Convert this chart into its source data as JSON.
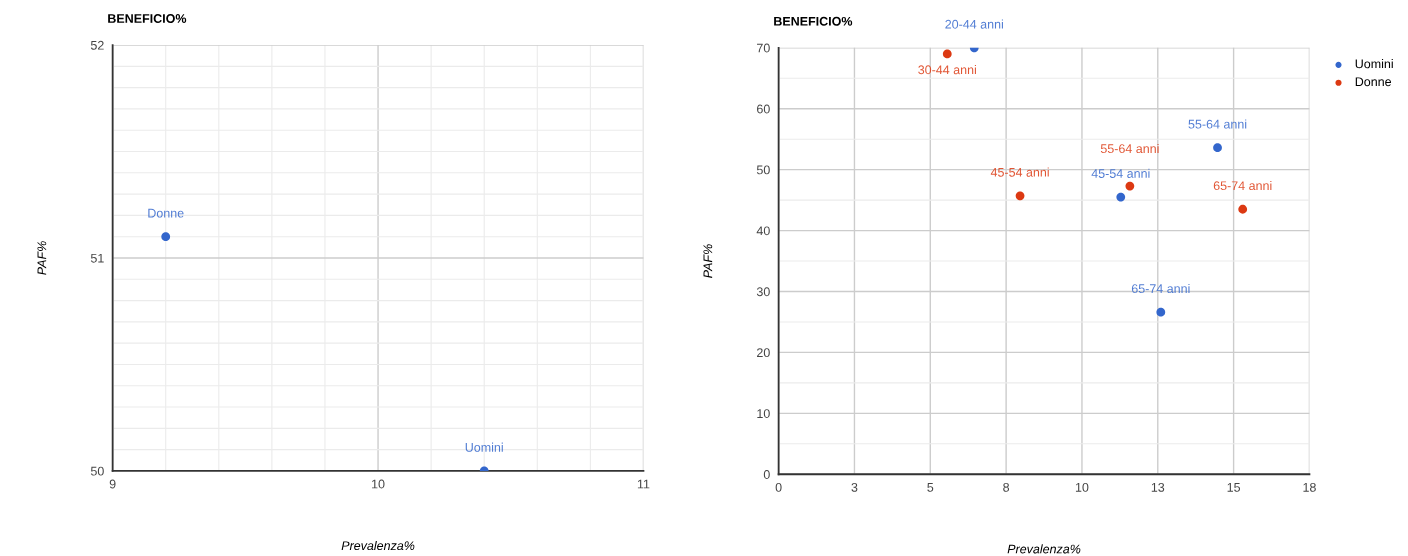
{
  "chart_data": [
    {
      "type": "scatter",
      "title": "BENEFICIO%",
      "xlabel": "Prevalenza%",
      "ylabel": "PAF%",
      "series": [
        {
          "color": "#3366cc",
          "x": [
            9.2,
            10.4
          ],
          "values": [
            51.1,
            50.0
          ],
          "value_labels": [
            "Donne",
            "Uomini"
          ]
        }
      ],
      "xlim": [
        9,
        11
      ],
      "ylim": [
        50,
        52
      ],
      "xticks": [
        9,
        {
          "value": 9.2,
          "label": null
        },
        {
          "value": 9.4,
          "label": null
        },
        {
          "value": 9.6,
          "label": null
        },
        {
          "value": 9.8,
          "label": null
        },
        10,
        {
          "value": 10.2,
          "label": null
        },
        {
          "value": 10.4,
          "label": null
        },
        {
          "value": 10.6,
          "label": null
        },
        {
          "value": 10.8,
          "label": null
        },
        11
      ],
      "yticks": [
        50,
        {
          "value": 50.1,
          "label": null
        },
        {
          "value": 50.2,
          "label": null
        },
        {
          "value": 50.3,
          "label": null
        },
        {
          "value": 50.4,
          "label": null
        },
        {
          "value": 50.5,
          "label": null
        },
        {
          "value": 50.6,
          "label": null
        },
        {
          "value": 50.7,
          "label": null
        },
        {
          "value": 50.8,
          "label": null
        },
        {
          "value": 50.9,
          "label": null
        },
        51,
        {
          "value": 51.1,
          "label": null
        },
        {
          "value": 51.2,
          "label": null
        },
        {
          "value": 51.3,
          "label": null
        },
        {
          "value": 51.4,
          "label": null
        },
        {
          "value": 51.5,
          "label": null
        },
        {
          "value": 51.6,
          "label": null
        },
        {
          "value": 51.7,
          "label": null
        },
        {
          "value": 51.8,
          "label": null
        },
        {
          "value": 51.9,
          "label": null
        },
        52
      ],
      "grid": true,
      "marker": "circle"
    },
    {
      "type": "scatter",
      "title": "BENEFICIO%",
      "xlabel": "Prevalenza%",
      "ylabel": "PAF%",
      "series": [
        {
          "name": "Uomini",
          "color": "#3366cc",
          "x": [
            6.45,
            11.28,
            14.47,
            12.6
          ],
          "values": [
            70,
            45.5,
            53.6,
            26.6
          ],
          "value_labels": [
            "20-44 anni",
            "45-54 anni",
            "55-64 anni",
            "65-74 anni"
          ]
        },
        {
          "name": "Donne",
          "color": "#dc3912",
          "x": [
            5.56,
            7.96,
            11.58,
            15.3
          ],
          "values": [
            69.0,
            45.7,
            47.3,
            43.5
          ],
          "value_labels": [
            "30-44 anni",
            "45-54 anni",
            "55-64 anni",
            "65-74 anni"
          ]
        }
      ],
      "xlim": [
        0,
        17.5
      ],
      "ylim": [
        0,
        70
      ],
      "xticks": [
        0,
        {
          "value": 2.5,
          "label": "3"
        },
        5,
        {
          "value": 7.5,
          "label": "8"
        },
        10,
        {
          "value": 12.5,
          "label": "13"
        },
        15,
        {
          "value": 17.5,
          "label": "18"
        }
      ],
      "yticks": [
        0,
        {
          "value": 5,
          "label": null
        },
        10,
        {
          "value": 15,
          "label": null
        },
        20,
        {
          "value": 25,
          "label": null
        },
        30,
        {
          "value": 35,
          "label": null
        },
        40,
        {
          "value": 45,
          "label": null
        },
        50,
        {
          "value": 55,
          "label": null
        },
        60,
        {
          "value": 65,
          "label": null
        },
        70
      ],
      "grid": true,
      "legend": "top right",
      "marker": "circle"
    }
  ]
}
